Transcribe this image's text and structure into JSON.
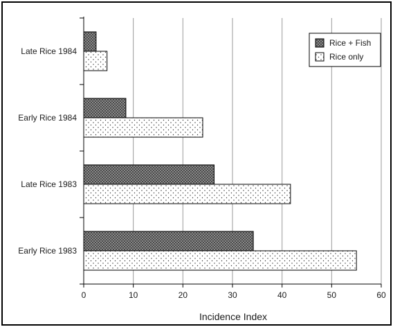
{
  "chart_data": {
    "type": "bar",
    "orientation": "horizontal",
    "title": "",
    "xlabel": "Incidence Index",
    "ylabel": "",
    "xlim": [
      0,
      60
    ],
    "xticks": [
      0,
      10,
      20,
      30,
      40,
      50,
      60
    ],
    "grid": "vertical",
    "legend_position": "top-right",
    "categories": [
      "Late Rice 1984",
      "Early Rice 1984",
      "Late Rice 1983",
      "Early Rice 1983"
    ],
    "series": [
      {
        "name": "Rice + Fish",
        "pattern": "crosshatch",
        "values": [
          2.5,
          8.5,
          26.3,
          34.2
        ]
      },
      {
        "name": "Rice only",
        "pattern": "dots",
        "values": [
          4.7,
          24.0,
          41.7,
          55.0
        ]
      }
    ]
  }
}
